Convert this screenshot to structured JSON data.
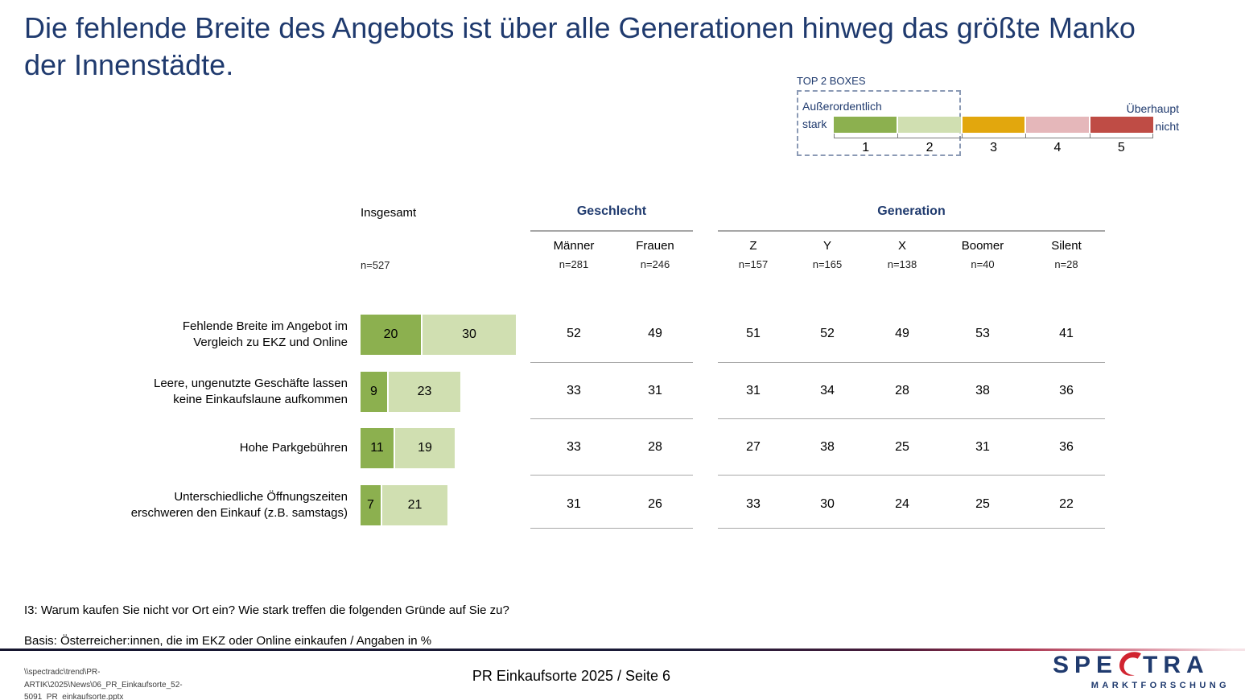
{
  "slide": {
    "title": "Die fehlende Breite des Angebots ist über alle Generationen hinweg das größte Manko der Innenstädte.",
    "footnote_question": "I3: Warum kaufen Sie nicht vor Ort ein? Wie stark treffen die folgenden Gründe auf Sie zu?",
    "footnote_basis": "Basis: Österreicher:innen, die im EKZ oder Online einkaufen / Angaben in %",
    "footer_path_line1": "\\\\spectradc\\trend\\PR-ARTIK\\2025\\News\\06_PR_Einkaufsorte_52-",
    "footer_path_line2": "5091_PR_einkaufsorte.pptx",
    "footer_center": "PR Einkaufsorte 2025  /  Seite 6",
    "logo": {
      "word_pre": "SPE",
      "word_post": "TRA",
      "subtitle": "MARKTFORSCHUNG"
    }
  },
  "legend": {
    "label": "TOP 2 BOXES",
    "left_label_line1": "Außerordentlich",
    "left_label_line2": "stark",
    "right_label_line1": "Überhaupt",
    "right_label_line2": "nicht",
    "scale": [
      "1",
      "2",
      "3",
      "4",
      "5"
    ],
    "colors": [
      "#8cb04f",
      "#d0dfb1",
      "#e2a70d",
      "#e5b7ba",
      "#bf4c45"
    ]
  },
  "bar_colors": {
    "seg1": "#8cb04f",
    "seg2": "#d0dfb1"
  },
  "table": {
    "insgesamt_header": "Insgesamt",
    "insgesamt_n": "n=527",
    "groups": [
      {
        "label": "Geschlecht",
        "columns": [
          {
            "name": "Männer",
            "n": "n=281"
          },
          {
            "name": "Frauen",
            "n": "n=246"
          }
        ]
      },
      {
        "label": "Generation",
        "columns": [
          {
            "name": "Z",
            "n": "n=157"
          },
          {
            "name": "Y",
            "n": "n=165"
          },
          {
            "name": "X",
            "n": "n=138"
          },
          {
            "name": "Boomer",
            "n": "n=40"
          },
          {
            "name": "Silent",
            "n": "n=28"
          }
        ]
      }
    ],
    "rows": [
      {
        "label": "Fehlende Breite im Angebot im\nVergleich zu EKZ und Online",
        "bar1": 20,
        "bar2": 30,
        "values": [
          52,
          49,
          51,
          52,
          49,
          53,
          41
        ]
      },
      {
        "label": "Leere, ungenutzte Geschäfte lassen\nkeine Einkaufslaune aufkommen",
        "bar1": 9,
        "bar2": 23,
        "values": [
          33,
          31,
          31,
          34,
          28,
          38,
          36
        ]
      },
      {
        "label": "Hohe Parkgebühren",
        "bar1": 11,
        "bar2": 19,
        "values": [
          33,
          28,
          27,
          38,
          25,
          31,
          36
        ]
      },
      {
        "label": "Unterschiedliche Öffnungszeiten\nerschweren den Einkauf (z.B. samstags)",
        "bar1": 7,
        "bar2": 21,
        "values": [
          31,
          26,
          33,
          30,
          24,
          25,
          22
        ]
      }
    ]
  },
  "chart_data": {
    "type": "bar",
    "subtype": "horizontal-stacked with top-2-box table",
    "units": "%",
    "title": "Die fehlende Breite des Angebots ist über alle Generationen hinweg das größte Manko der Innenstädte.",
    "scale_legend": {
      "1": "Außerordentlich stark",
      "5": "Überhaupt nicht",
      "highlight": "TOP 2 BOXES (1+2)"
    },
    "categories": [
      "Fehlende Breite im Angebot im Vergleich zu EKZ und Online",
      "Leere, ungenutzte Geschäfte lassen keine Einkaufslaune aufkommen",
      "Hohe Parkgebühren",
      "Unterschiedliche Öffnungszeiten erschweren den Einkauf (z.B. samstags)"
    ],
    "insgesamt": {
      "n": 527,
      "series": [
        {
          "name": "Skala 1 (außerordentlich stark)",
          "values": [
            20,
            9,
            11,
            7
          ]
        },
        {
          "name": "Skala 2",
          "values": [
            30,
            23,
            19,
            21
          ]
        }
      ]
    },
    "top2_by_group": {
      "groups": [
        "Männer",
        "Frauen",
        "Z",
        "Y",
        "X",
        "Boomer",
        "Silent"
      ],
      "group_n": [
        281,
        246,
        157,
        165,
        138,
        40,
        28
      ],
      "rows": [
        {
          "category": "Fehlende Breite im Angebot im Vergleich zu EKZ und Online",
          "values": [
            52,
            49,
            51,
            52,
            49,
            53,
            41
          ]
        },
        {
          "category": "Leere, ungenutzte Geschäfte lassen keine Einkaufslaune aufkommen",
          "values": [
            33,
            31,
            31,
            34,
            28,
            38,
            36
          ]
        },
        {
          "category": "Hohe Parkgebühren",
          "values": [
            33,
            28,
            27,
            38,
            25,
            31,
            36
          ]
        },
        {
          "category": "Unterschiedliche Öffnungszeiten erschweren den Einkauf (z.B. samstags)",
          "values": [
            31,
            26,
            33,
            30,
            24,
            25,
            22
          ]
        }
      ]
    }
  }
}
